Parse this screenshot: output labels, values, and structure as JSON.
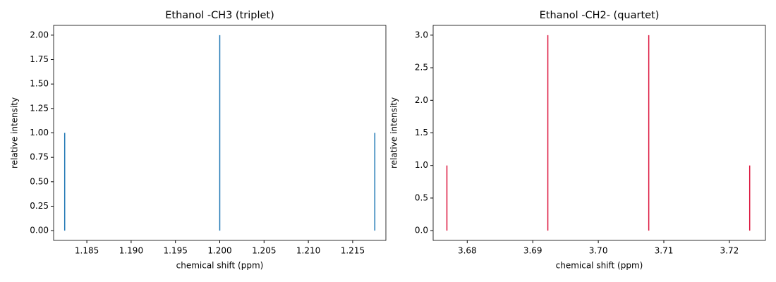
{
  "chart_data": [
    {
      "type": "vlines",
      "title": "Ethanol -CH3 (triplet)",
      "x_label": "chemical shift (ppm)",
      "y_label": "relative intensity",
      "x": [
        1.1825,
        1.2,
        1.2175
      ],
      "values": [
        1,
        2,
        1
      ],
      "color": "#1f77b4",
      "xlim": [
        1.18125,
        1.21875
      ],
      "ylim": [
        -0.1,
        2.1
      ],
      "xticks": [
        1.185,
        {
          "value": 1.19,
          "label": "1.190"
        },
        1.195,
        {
          "value": 1.2,
          "label": "1.200"
        },
        1.205,
        {
          "value": 1.21,
          "label": "1.210"
        },
        1.215
      ],
      "yticks": [
        {
          "value": 0,
          "label": "0.00"
        },
        0.25,
        {
          "value": 0.5,
          "label": "0.50"
        },
        0.75,
        {
          "value": 1,
          "label": "1.00"
        },
        1.25,
        {
          "value": 1.5,
          "label": "1.50"
        },
        1.75,
        {
          "value": 2,
          "label": "2.00"
        }
      ]
    },
    {
      "type": "vlines",
      "title": "Ethanol -CH2- (quartet)",
      "x_label": "chemical shift (ppm)",
      "y_label": "relative intensity",
      "x": [
        3.6769,
        3.6923,
        3.7077,
        3.7231
      ],
      "values": [
        1,
        3,
        3,
        1
      ],
      "color": "#dc143c",
      "xlim": [
        3.6748,
        3.7255
      ],
      "ylim": [
        -0.15,
        3.15
      ],
      "xticks": [
        3.68,
        3.69,
        {
          "value": 3.7,
          "label": "3.70"
        },
        3.71,
        3.72
      ],
      "yticks": [
        {
          "value": 0,
          "label": "0.0"
        },
        0.5,
        {
          "value": 1,
          "label": "1.0"
        },
        1.5,
        {
          "value": 2,
          "label": "2.0"
        },
        2.5,
        {
          "value": 3,
          "label": "3.0"
        }
      ]
    }
  ]
}
